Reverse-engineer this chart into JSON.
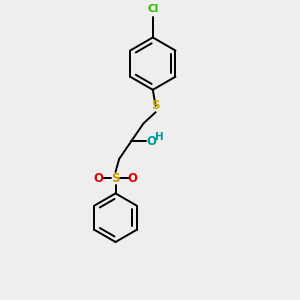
{
  "background_color": "#eeeeee",
  "figsize": [
    3.0,
    3.0
  ],
  "dpi": 100,
  "bond_color": "#000000",
  "bond_width": 1.4,
  "cl_color": "#22bb00",
  "s_thioether_color": "#ccaa00",
  "s_sulfone_color": "#cc9900",
  "o_color": "#dd0000",
  "oh_color": "#009999",
  "xlim": [
    -0.8,
    0.8
  ],
  "ylim": [
    -1.55,
    1.55
  ]
}
